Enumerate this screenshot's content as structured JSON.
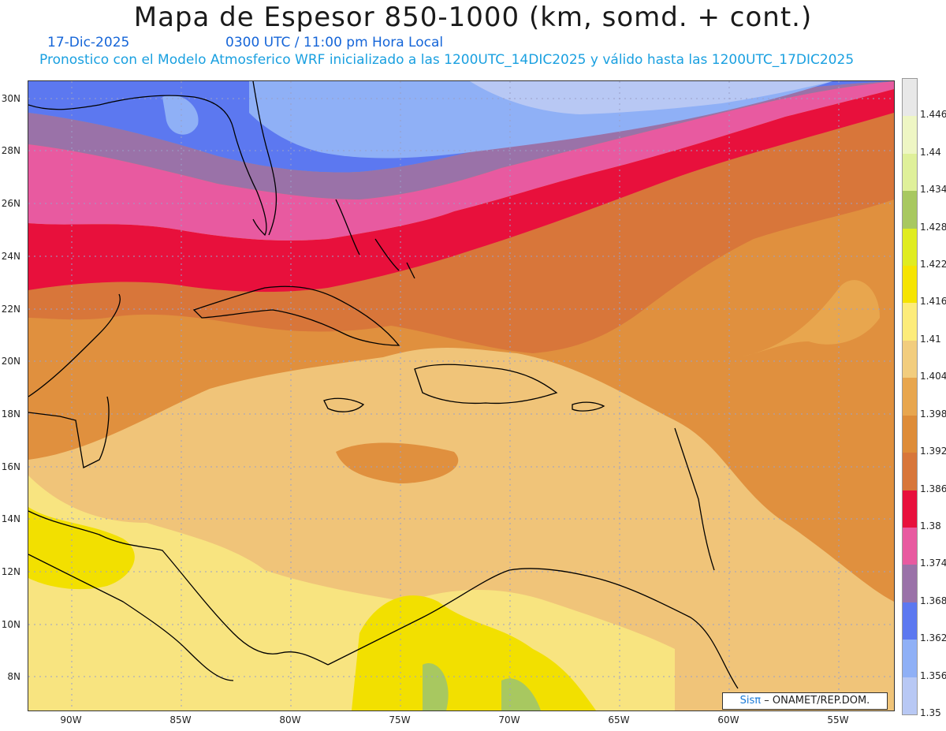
{
  "header": {
    "title": "Mapa de Espesor 850-1000 (km, somd. + cont.)",
    "date": "17-Dic-2025",
    "time": "0300 UTC / 11:00 pm Hora Local",
    "subtitle": "Pronostico con el Modelo Atmosferico WRF inicializado a las 1200UTC_14DIC2025 y válido hasta las  1200UTC_17DIC2025"
  },
  "map": {
    "lat_labels": [
      "30N",
      "28N",
      "26N",
      "24N",
      "22N",
      "20N",
      "18N",
      "16N",
      "14N",
      "12N",
      "10N",
      "8N"
    ],
    "lon_labels": [
      "90W",
      "85W",
      "80W",
      "75W",
      "70W",
      "65W",
      "60W",
      "55W"
    ],
    "colors": {
      "lavender": "#b8c8f4",
      "light_blue": "#8fb0f6",
      "blue": "#5c78f0",
      "purple": "#9a72a8",
      "pink": "#e85aa0",
      "red": "#e8103c",
      "dark_orange": "#da7a3a",
      "orange": "#e0903e",
      "light_orange": "#f0c479",
      "pale_yellow": "#f8e480",
      "yellow": "#f2e000",
      "green": "#a8c860",
      "grid": "#9aa0c8"
    }
  },
  "colorbar": {
    "labels": [
      "1.446",
      "1.44",
      "1.434",
      "1.428",
      "1.422",
      "1.416",
      "1.41",
      "1.404",
      "1.398",
      "1.392",
      "1.386",
      "1.38",
      "1.374",
      "1.368",
      "1.362",
      "1.356",
      "1.35"
    ],
    "colors": [
      "#e8e8e8",
      "#eef6c4",
      "#dff09a",
      "#a8c860",
      "#e0ec20",
      "#f6e400",
      "#fdec7a",
      "#f2cd7e",
      "#e8a64e",
      "#de8c38",
      "#d8763a",
      "#e8103c",
      "#e85aa0",
      "#9a72a8",
      "#5c78f0",
      "#8fb0f6",
      "#b8c8f4"
    ]
  },
  "credit": {
    "logo": "Sisπ",
    "text": "– ONAMET/REP.DOM."
  }
}
